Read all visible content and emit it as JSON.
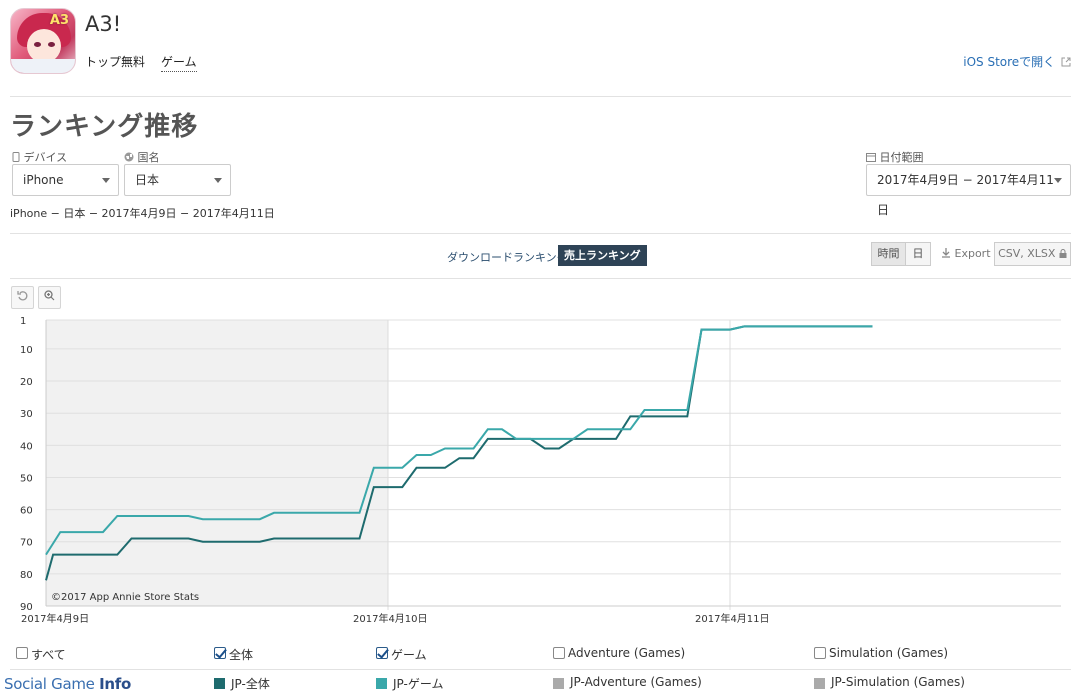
{
  "app": {
    "title": "A3!",
    "icon_badge": "A3",
    "links": [
      "トップ無料",
      "ゲーム"
    ],
    "ios_link": "iOS Storeで開く",
    "ios_link_icon": "external-link-icon"
  },
  "page_title": "ランキング推移",
  "filters": {
    "device_label": "デバイス",
    "device_icon": "phone-icon",
    "device_value": "iPhone",
    "country_label": "国名",
    "country_icon": "globe-icon",
    "country_value": "日本",
    "date_label": "日付範囲",
    "date_icon": "calendar-icon",
    "date_value": "2017年4月9日 − 2017年4月11日"
  },
  "summary": "iPhone − 日本 − 2017年4月9日 − 2017年4月11日",
  "tabs": {
    "download": "ダウンロードランキング",
    "revenue": "売上ランキング"
  },
  "toolbar": {
    "hour": "時間",
    "day": "日",
    "export": "Export",
    "export_icon": "download-icon",
    "format": "CSV, XLSX",
    "lock_icon": "lock-icon",
    "reset_icon": "reset-icon",
    "zoom_icon": "zoom-icon"
  },
  "chart_data": {
    "type": "line",
    "y_axis": {
      "ticks": [
        1,
        10,
        20,
        30,
        40,
        50,
        60,
        70,
        80,
        90
      ],
      "range": [
        1,
        90
      ],
      "inverted": true
    },
    "x_axis": {
      "tick_labels": [
        "2017年4月9日",
        "2017年4月10日",
        "2017年4月11日"
      ],
      "range_hours": [
        0,
        60
      ]
    },
    "credit": "©2017 App Annie Store Stats",
    "shaded_region_hours": [
      0,
      24
    ],
    "series": [
      {
        "name": "JP-全体",
        "color": "#1e6b6e",
        "points": [
          [
            0,
            82
          ],
          [
            0.5,
            74
          ],
          [
            5,
            74
          ],
          [
            6,
            69
          ],
          [
            10,
            69
          ],
          [
            11,
            70
          ],
          [
            15,
            70
          ],
          [
            16,
            69
          ],
          [
            22,
            69
          ],
          [
            23,
            53
          ],
          [
            25,
            53
          ],
          [
            26,
            47
          ],
          [
            28,
            47
          ],
          [
            29,
            44
          ],
          [
            30,
            44
          ],
          [
            31,
            38
          ],
          [
            34,
            38
          ],
          [
            35,
            41
          ],
          [
            36,
            41
          ],
          [
            37,
            38
          ],
          [
            40,
            38
          ],
          [
            41,
            31
          ],
          [
            45,
            31
          ],
          [
            46,
            4
          ],
          [
            48,
            4
          ],
          [
            49,
            3
          ],
          [
            58,
            3
          ]
        ]
      },
      {
        "name": "JP-ゲーム",
        "color": "#3aa8aa",
        "points": [
          [
            0,
            74
          ],
          [
            1,
            67
          ],
          [
            4,
            67
          ],
          [
            5,
            62
          ],
          [
            10,
            62
          ],
          [
            11,
            63
          ],
          [
            15,
            63
          ],
          [
            16,
            61
          ],
          [
            22,
            61
          ],
          [
            23,
            47
          ],
          [
            25,
            47
          ],
          [
            26,
            43
          ],
          [
            27,
            43
          ],
          [
            28,
            41
          ],
          [
            30,
            41
          ],
          [
            31,
            35
          ],
          [
            32,
            35
          ],
          [
            33,
            38
          ],
          [
            37,
            38
          ],
          [
            38,
            35
          ],
          [
            41,
            35
          ],
          [
            42,
            29
          ],
          [
            45,
            29
          ],
          [
            46,
            4
          ],
          [
            48,
            4
          ],
          [
            49,
            3
          ],
          [
            58,
            3
          ]
        ]
      }
    ]
  },
  "checkboxes": [
    {
      "label": "すべて",
      "checked": false
    },
    {
      "label": "全体",
      "checked": true
    },
    {
      "label": "ゲーム",
      "checked": true
    },
    {
      "label": "Adventure (Games)",
      "checked": false
    },
    {
      "label": "Simulation (Games)",
      "checked": false
    }
  ],
  "legend": [
    {
      "label": "JP-全体",
      "color": "#1e6b6e"
    },
    {
      "label": "JP-ゲーム",
      "color": "#3aa8aa"
    },
    {
      "label": "JP-Adventure (Games)",
      "color": "#aaaaaa"
    },
    {
      "label": "JP-Simulation (Games)",
      "color": "#aaaaaa"
    }
  ],
  "watermark": {
    "part1": "Social Game ",
    "part2": "Info"
  }
}
